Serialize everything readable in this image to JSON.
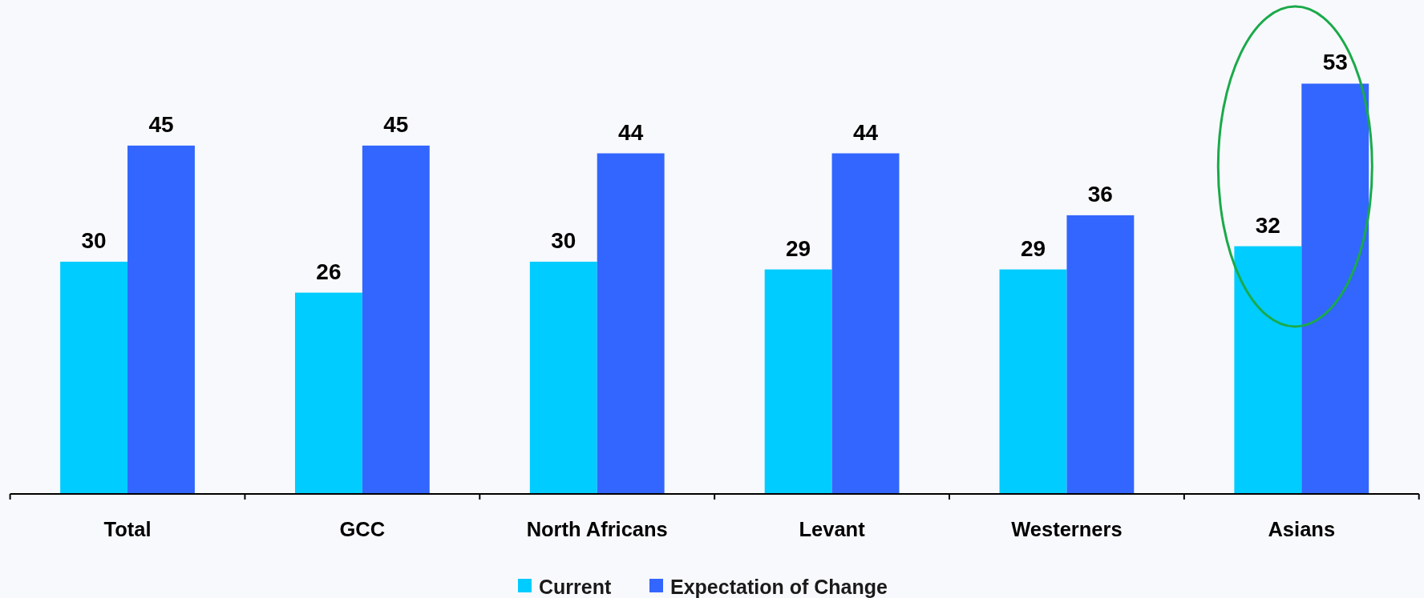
{
  "chart_data": {
    "type": "bar",
    "categories": [
      "Total",
      "GCC",
      "North Africans",
      "Levant",
      "Westerners",
      "Asians"
    ],
    "series": [
      {
        "name": "Current",
        "color": "#00ccff",
        "values": [
          30,
          26,
          30,
          29,
          29,
          32
        ]
      },
      {
        "name": "Expectation of Change",
        "color": "#3366ff",
        "values": [
          45,
          45,
          44,
          44,
          36,
          53
        ]
      }
    ],
    "ylim": [
      0,
      64
    ],
    "data_labels": true,
    "legend": "bottom",
    "tick_labels": "x"
  }
}
